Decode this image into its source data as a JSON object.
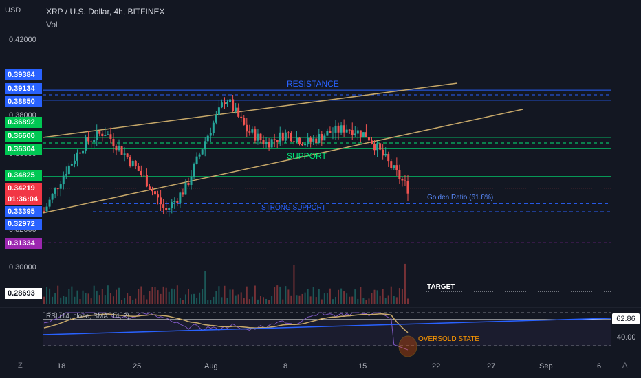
{
  "header": {
    "currency": "USD",
    "symbol_title": "XRP / U.S. Dollar, 4h, BITFINEX",
    "volume_label": "Vol"
  },
  "controls": {
    "zoom_label": "Z",
    "auto_label": "A"
  },
  "colors": {
    "background": "#131722",
    "up": "#26a69a",
    "down": "#ef5350",
    "resistance": "#2962ff",
    "support": "#00e676",
    "trend": "#c8a96a",
    "target": "#9c27b0",
    "rsi": "#7e57c2"
  },
  "y_axis_ticks": [
    "0.42000",
    "0.38000",
    "0.36000",
    "0.32000",
    "0.30000"
  ],
  "price_badges": [
    {
      "label": "0.39384",
      "color": "#2962ff"
    },
    {
      "label": "0.39134",
      "color": "#2962ff"
    },
    {
      "label": "0.38850",
      "color": "#2962ff"
    },
    {
      "label": "0.36892",
      "color": "#00c853"
    },
    {
      "label": "0.36600",
      "color": "#00c853"
    },
    {
      "label": "0.36304",
      "color": "#00c853"
    },
    {
      "label": "0.34825",
      "color": "#00c853"
    },
    {
      "label": "0.34219",
      "color": "#f23645"
    },
    {
      "label": "01:36:04",
      "color": "#f23645"
    },
    {
      "label": "0.33395",
      "color": "#2962ff"
    },
    {
      "label": "0.32972",
      "color": "#2962ff"
    },
    {
      "label": "0.31334",
      "color": "#9c27b0"
    },
    {
      "label": "0.28693",
      "color": "#ffffff"
    }
  ],
  "x_axis_labels": [
    "18",
    "25",
    "Aug",
    "8",
    "15",
    "22",
    "27",
    "Sep",
    "6"
  ],
  "annotations": {
    "resistance": "RESISTANCE",
    "support": "SUPPORT",
    "strong_support": "STRONG SUPPORT",
    "golden_ratio": "Golden Ratio (61.8%)",
    "target": "TARGET",
    "oversold": "OVERSOLD STATE",
    "rsi_title": "RSI (14, close, SMA, 14, 2)"
  },
  "rsi_panel": {
    "value_label": "62.86",
    "level_label": "40.00"
  },
  "chart_data": {
    "type": "candlestick",
    "title": "XRP / U.S. Dollar, 4h, BITFINEX",
    "ylabel": "USD",
    "ylim": [
      0.284,
      0.43
    ],
    "x_labels": [
      "18",
      "25",
      "Aug",
      "8",
      "15",
      "22",
      "27",
      "Sep",
      "6"
    ],
    "close_path_approx": [
      {
        "date": "Jul 16",
        "close": 0.33
      },
      {
        "date": "Jul 17",
        "close": 0.35
      },
      {
        "date": "Jul 19",
        "close": 0.366
      },
      {
        "date": "Jul 20",
        "close": 0.372
      },
      {
        "date": "Jul 22",
        "close": 0.36
      },
      {
        "date": "Jul 24",
        "close": 0.347
      },
      {
        "date": "Jul 26",
        "close": 0.33
      },
      {
        "date": "Jul 27",
        "close": 0.342
      },
      {
        "date": "Jul 29",
        "close": 0.368
      },
      {
        "date": "Jul 31",
        "close": 0.39
      },
      {
        "date": "Aug 2",
        "close": 0.373
      },
      {
        "date": "Aug 5",
        "close": 0.366
      },
      {
        "date": "Aug 7",
        "close": 0.371
      },
      {
        "date": "Aug 9",
        "close": 0.366
      },
      {
        "date": "Aug 11",
        "close": 0.371
      },
      {
        "date": "Aug 14",
        "close": 0.374
      },
      {
        "date": "Aug 16",
        "close": 0.37
      },
      {
        "date": "Aug 17",
        "close": 0.356
      },
      {
        "date": "Aug 18",
        "close": 0.342
      }
    ],
    "horizontal_levels": [
      {
        "label": "RESISTANCE",
        "values": [
          0.39384,
          0.39134,
          0.3885
        ]
      },
      {
        "label": "SUPPORT",
        "values": [
          0.36892,
          0.366,
          0.36304,
          0.34825
        ]
      },
      {
        "label": "STRONG SUPPORT",
        "values": [
          0.33395,
          0.32972
        ]
      },
      {
        "label": "TARGET",
        "values": [
          0.31334,
          0.28693
        ]
      }
    ],
    "last_price": 0.34219,
    "rsi": {
      "last": 62.86,
      "levels": [
        70,
        40,
        30
      ]
    }
  }
}
